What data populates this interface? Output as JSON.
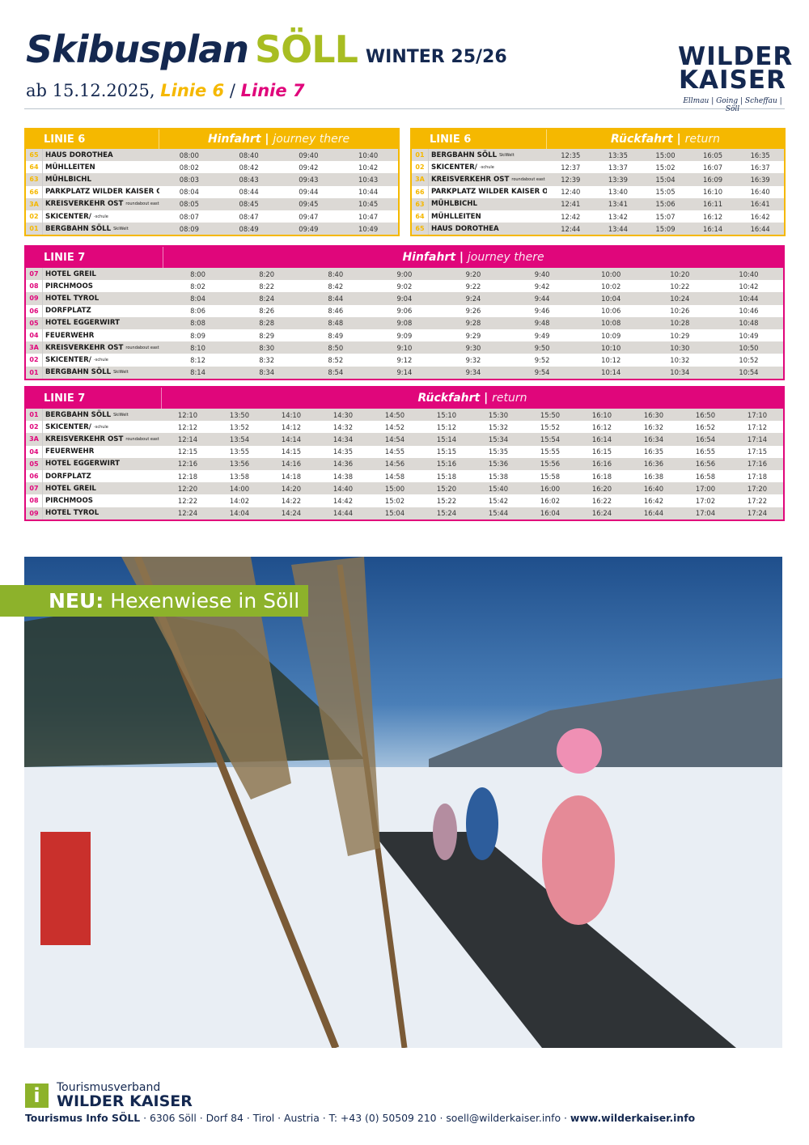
{
  "header": {
    "title": "Skibusplan",
    "title_place": "SÖLL",
    "season": "WINTER 25/26",
    "from": "ab 15.12.2025,",
    "line6": "Linie 6",
    "sep": "/",
    "line7": "Linie 7"
  },
  "logo": {
    "line1": "WILDER",
    "line2": "KAISER",
    "towns": "Ellmau | Going | Scheffau | Söll"
  },
  "colors": {
    "linie6": "#f5b800",
    "linie7": "#e0067b",
    "navy": "#142850",
    "green": "#8db22b"
  },
  "tables": [
    {
      "id": "l6-hin",
      "line": "LINIE 6",
      "dir": "Hinfahrt",
      "dir_en": "journey there",
      "stops": [
        {
          "n": "65",
          "s": "HAUS DOROTHEA",
          "x": "",
          "t": [
            "08:00",
            "08:40",
            "09:40",
            "10:40"
          ]
        },
        {
          "n": "64",
          "s": "MÜHLLEITEN",
          "x": "",
          "t": [
            "08:02",
            "08:42",
            "09:42",
            "10:42"
          ]
        },
        {
          "n": "63",
          "s": "MÜHLBICHL",
          "x": "",
          "t": [
            "08:03",
            "08:43",
            "09:43",
            "10:43"
          ]
        },
        {
          "n": "66",
          "s": "PARKPLATZ WILDER KAISER OST",
          "x": "",
          "t": [
            "08:04",
            "08:44",
            "09:44",
            "10:44"
          ]
        },
        {
          "n": "3A",
          "s": "KREISVERKEHR OST",
          "x": "roundabout east",
          "t": [
            "08:05",
            "08:45",
            "09:45",
            "10:45"
          ]
        },
        {
          "n": "02",
          "s": "SKICENTER/",
          "x": "-schule",
          "t": [
            "08:07",
            "08:47",
            "09:47",
            "10:47"
          ]
        },
        {
          "n": "01",
          "s": "BERGBAHN SÖLL",
          "x": "SkiWelt",
          "t": [
            "08:09",
            "08:49",
            "09:49",
            "10:49"
          ]
        }
      ]
    },
    {
      "id": "l6-rueck",
      "line": "LINIE 6",
      "dir": "Rückfahrt",
      "dir_en": "return",
      "stops": [
        {
          "n": "01",
          "s": "BERGBAHN SÖLL",
          "x": "SkiWelt",
          "t": [
            "12:35",
            "13:35",
            "15:00",
            "16:05",
            "16:35"
          ]
        },
        {
          "n": "02",
          "s": "SKICENTER/",
          "x": "-schule",
          "t": [
            "12:37",
            "13:37",
            "15:02",
            "16:07",
            "16:37"
          ]
        },
        {
          "n": "3A",
          "s": "KREISVERKEHR OST",
          "x": "roundabout east",
          "t": [
            "12:39",
            "13:39",
            "15:04",
            "16:09",
            "16:39"
          ]
        },
        {
          "n": "66",
          "s": "PARKPLATZ WILDER KAISER OST",
          "x": "",
          "t": [
            "12:40",
            "13:40",
            "15:05",
            "16:10",
            "16:40"
          ]
        },
        {
          "n": "63",
          "s": "MÜHLBICHL",
          "x": "",
          "t": [
            "12:41",
            "13:41",
            "15:06",
            "16:11",
            "16:41"
          ]
        },
        {
          "n": "64",
          "s": "MÜHLLEITEN",
          "x": "",
          "t": [
            "12:42",
            "13:42",
            "15:07",
            "16:12",
            "16:42"
          ]
        },
        {
          "n": "65",
          "s": "HAUS DOROTHEA",
          "x": "",
          "t": [
            "12:44",
            "13:44",
            "15:09",
            "16:14",
            "16:44"
          ]
        }
      ]
    },
    {
      "id": "l7-hin",
      "line": "LINIE 7",
      "dir": "Hinfahrt",
      "dir_en": "journey there",
      "stops": [
        {
          "n": "07",
          "s": "HOTEL GREIL",
          "x": "",
          "t": [
            "8:00",
            "8:20",
            "8:40",
            "9:00",
            "9:20",
            "9:40",
            "10:00",
            "10:20",
            "10:40"
          ]
        },
        {
          "n": "08",
          "s": "PIRCHMOOS",
          "x": "",
          "t": [
            "8:02",
            "8:22",
            "8:42",
            "9:02",
            "9:22",
            "9:42",
            "10:02",
            "10:22",
            "10:42"
          ]
        },
        {
          "n": "09",
          "s": "HOTEL TYROL",
          "x": "",
          "t": [
            "8:04",
            "8:24",
            "8:44",
            "9:04",
            "9:24",
            "9:44",
            "10:04",
            "10:24",
            "10:44"
          ]
        },
        {
          "n": "06",
          "s": "DORFPLATZ",
          "x": "",
          "t": [
            "8:06",
            "8:26",
            "8:46",
            "9:06",
            "9:26",
            "9:46",
            "10:06",
            "10:26",
            "10:46"
          ]
        },
        {
          "n": "05",
          "s": "HOTEL EGGERWIRT",
          "x": "",
          "t": [
            "8:08",
            "8:28",
            "8:48",
            "9:08",
            "9:28",
            "9:48",
            "10:08",
            "10:28",
            "10:48"
          ]
        },
        {
          "n": "04",
          "s": "FEUERWEHR",
          "x": "",
          "t": [
            "8:09",
            "8:29",
            "8:49",
            "9:09",
            "9:29",
            "9:49",
            "10:09",
            "10:29",
            "10:49"
          ]
        },
        {
          "n": "3A",
          "s": "KREISVERKEHR OST",
          "x": "roundabout east",
          "t": [
            "8:10",
            "8:30",
            "8:50",
            "9:10",
            "9:30",
            "9:50",
            "10:10",
            "10:30",
            "10:50"
          ]
        },
        {
          "n": "02",
          "s": "SKICENTER/",
          "x": "-schule",
          "t": [
            "8:12",
            "8:32",
            "8:52",
            "9:12",
            "9:32",
            "9:52",
            "10:12",
            "10:32",
            "10:52"
          ]
        },
        {
          "n": "01",
          "s": "BERGBAHN SÖLL",
          "x": "SkiWelt",
          "t": [
            "8:14",
            "8:34",
            "8:54",
            "9:14",
            "9:34",
            "9:54",
            "10:14",
            "10:34",
            "10:54"
          ]
        }
      ]
    },
    {
      "id": "l7-rueck",
      "line": "LINIE 7",
      "dir": "Rückfahrt",
      "dir_en": "return",
      "stops": [
        {
          "n": "01",
          "s": "BERGBAHN SÖLL",
          "x": "SkiWelt",
          "t": [
            "12:10",
            "13:50",
            "14:10",
            "14:30",
            "14:50",
            "15:10",
            "15:30",
            "15:50",
            "16:10",
            "16:30",
            "16:50",
            "17:10"
          ]
        },
        {
          "n": "02",
          "s": "SKICENTER/",
          "x": "-schule",
          "t": [
            "12:12",
            "13:52",
            "14:12",
            "14:32",
            "14:52",
            "15:12",
            "15:32",
            "15:52",
            "16:12",
            "16:32",
            "16:52",
            "17:12"
          ]
        },
        {
          "n": "3A",
          "s": "KREISVERKEHR OST",
          "x": "roundabout east",
          "t": [
            "12:14",
            "13:54",
            "14:14",
            "14:34",
            "14:54",
            "15:14",
            "15:34",
            "15:54",
            "16:14",
            "16:34",
            "16:54",
            "17:14"
          ]
        },
        {
          "n": "04",
          "s": "FEUERWEHR",
          "x": "",
          "t": [
            "12:15",
            "13:55",
            "14:15",
            "14:35",
            "14:55",
            "15:15",
            "15:35",
            "15:55",
            "16:15",
            "16:35",
            "16:55",
            "17:15"
          ]
        },
        {
          "n": "05",
          "s": "HOTEL EGGERWIRT",
          "x": "",
          "t": [
            "12:16",
            "13:56",
            "14:16",
            "14:36",
            "14:56",
            "15:16",
            "15:36",
            "15:56",
            "16:16",
            "16:36",
            "16:56",
            "17:16"
          ]
        },
        {
          "n": "06",
          "s": "DORFPLATZ",
          "x": "",
          "t": [
            "12:18",
            "13:58",
            "14:18",
            "14:38",
            "14:58",
            "15:18",
            "15:38",
            "15:58",
            "16:18",
            "16:38",
            "16:58",
            "17:18"
          ]
        },
        {
          "n": "07",
          "s": "HOTEL GREIL",
          "x": "",
          "t": [
            "12:20",
            "14:00",
            "14:20",
            "14:40",
            "15:00",
            "15:20",
            "15:40",
            "16:00",
            "16:20",
            "16:40",
            "17:00",
            "17:20"
          ]
        },
        {
          "n": "08",
          "s": "PIRCHMOOS",
          "x": "",
          "t": [
            "12:22",
            "14:02",
            "14:22",
            "14:42",
            "15:02",
            "15:22",
            "15:42",
            "16:02",
            "16:22",
            "16:42",
            "17:02",
            "17:22"
          ]
        },
        {
          "n": "09",
          "s": "HOTEL TYROL",
          "x": "",
          "t": [
            "12:24",
            "14:04",
            "14:24",
            "14:44",
            "15:04",
            "15:24",
            "15:44",
            "16:04",
            "16:24",
            "16:44",
            "17:04",
            "17:24"
          ]
        }
      ]
    }
  ],
  "banner": {
    "bold": "NEU:",
    "text": "Hexenwiese in Söll"
  },
  "footer": {
    "icon": "i",
    "org1": "Tourismusverband",
    "org2": "WILDER KAISER",
    "info_bold": "Tourismus Info SÖLL",
    "address": " · 6306 Söll · Dorf 84 · Tirol · Austria · T: +43 (0) 50509 210 · soell@wilderkaiser.info · ",
    "web": "www.wilderkaiser.info"
  }
}
